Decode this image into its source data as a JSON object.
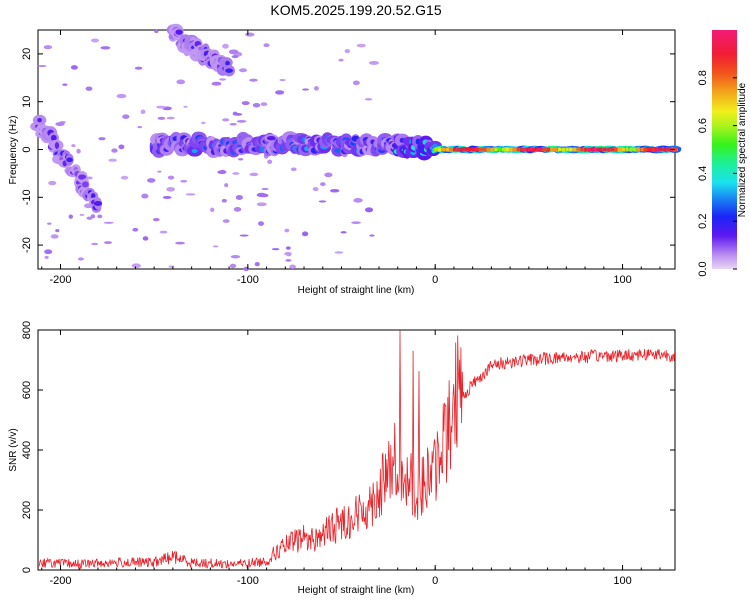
{
  "title": "KOM5.2025.199.20.52.G15",
  "chart_data": [
    {
      "type": "heatmap",
      "xlabel": "Height of straight line (km)",
      "ylabel": "Frequency (Hz)",
      "xlim": [
        -212,
        128
      ],
      "ylim": [
        -25,
        25
      ],
      "x_ticks": [
        -200,
        -100,
        0,
        100
      ],
      "y_ticks": [
        -20,
        -10,
        0,
        10,
        20
      ],
      "colorbar": {
        "label": "Normalized spectral amplitude",
        "ticks": [
          0.0,
          0.2,
          0.4,
          0.6,
          0.8
        ],
        "range": [
          0,
          1
        ]
      },
      "features": [
        {
          "x": [
            -140,
            -110
          ],
          "y": [
            24,
            17
          ],
          "amplitude": 0.15
        },
        {
          "x": [
            -212,
            -180
          ],
          "y": [
            6,
            -12
          ],
          "amplitude": 0.15
        },
        {
          "x": [
            -150,
            -20
          ],
          "y": [
            1,
            1
          ],
          "amplitude": 0.25
        },
        {
          "x": [
            -20,
            0
          ],
          "y": [
            1,
            0
          ],
          "amplitude": 0.35
        },
        {
          "x": [
            0,
            128
          ],
          "y": [
            0,
            0
          ],
          "amplitude": 0.9
        }
      ]
    },
    {
      "type": "line",
      "xlabel": "Height of straight line (km)",
      "ylabel": "SNR (v/v)",
      "xlim": [
        -212,
        128
      ],
      "ylim": [
        0,
        800
      ],
      "x_ticks": [
        -200,
        -100,
        0,
        100
      ],
      "y_ticks": [
        0,
        200,
        400,
        600,
        800
      ],
      "series": [
        {
          "color": "#e8232a",
          "x": [
            -212,
            -190,
            -170,
            -150,
            -140,
            -130,
            -110,
            -100,
            -90,
            -85,
            -80,
            -75,
            -70,
            -65,
            -60,
            -55,
            -50,
            -45,
            -40,
            -35,
            -30,
            -25,
            -20,
            -15,
            -10,
            -5,
            0,
            5,
            10,
            15,
            20,
            25,
            30,
            40,
            50,
            60,
            70,
            80,
            90,
            100,
            110,
            120,
            128
          ],
          "y": [
            25,
            20,
            25,
            25,
            45,
            25,
            20,
            22,
            30,
            60,
            80,
            95,
            110,
            100,
            120,
            140,
            160,
            170,
            190,
            220,
            260,
            320,
            380,
            330,
            250,
            300,
            330,
            440,
            520,
            580,
            620,
            650,
            680,
            695,
            700,
            705,
            710,
            710,
            715,
            715,
            720,
            720,
            715
          ]
        }
      ]
    }
  ]
}
